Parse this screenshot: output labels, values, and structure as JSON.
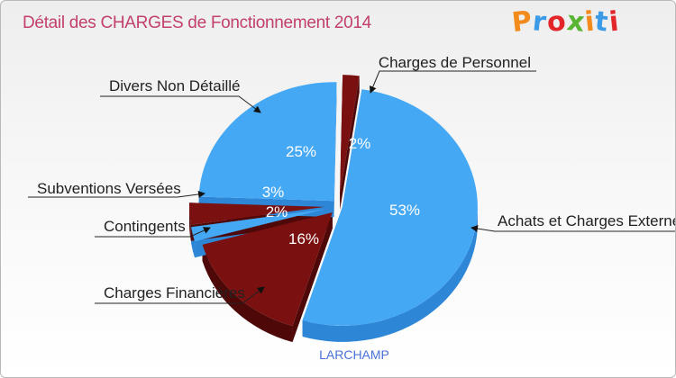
{
  "logo": {
    "text": "Proxiti",
    "letters": [
      "P",
      "r",
      "o",
      "x",
      "i",
      "t",
      "i"
    ],
    "colors": [
      "#f28a1c",
      "#3c9be6",
      "#e2262a",
      "#5ab534",
      "#f28a1c",
      "#3c9be6",
      "#e2262a"
    ]
  },
  "chart_data": {
    "type": "pie",
    "title": "Détail des CHARGES de Fonctionnement 2014",
    "subtitle": "LARCHAMP",
    "slices": [
      {
        "label": "Charges de Personnel",
        "pct": 2,
        "pct_label": "2%",
        "color": "#7a1010",
        "side_color": "#4e0808"
      },
      {
        "label": "Achats et Charges Externes",
        "pct": 53,
        "pct_label": "53%",
        "color": "#45a8f5",
        "side_color": "#2d86d6"
      },
      {
        "label": "Charges Financières",
        "pct": 16,
        "pct_label": "16%",
        "color": "#7a1010",
        "side_color": "#4e0808"
      },
      {
        "label": "Contingents",
        "pct": 2,
        "pct_label": "2%",
        "color": "#45a8f5",
        "side_color": "#2d86d6"
      },
      {
        "label": "Subventions Versées",
        "pct": 3,
        "pct_label": "3%",
        "color": "#7a1010",
        "side_color": "#4e0808"
      },
      {
        "label": "Divers Non Détaillé",
        "pct": 25,
        "pct_label": "25%",
        "color": "#45a8f5",
        "side_color": "#2d86d6"
      }
    ],
    "title_color": "#c2406a",
    "subtitle_color": "#4a72d8",
    "label_color_on_blue": "#ffffff",
    "label_color_on_red": "#ffffff"
  }
}
